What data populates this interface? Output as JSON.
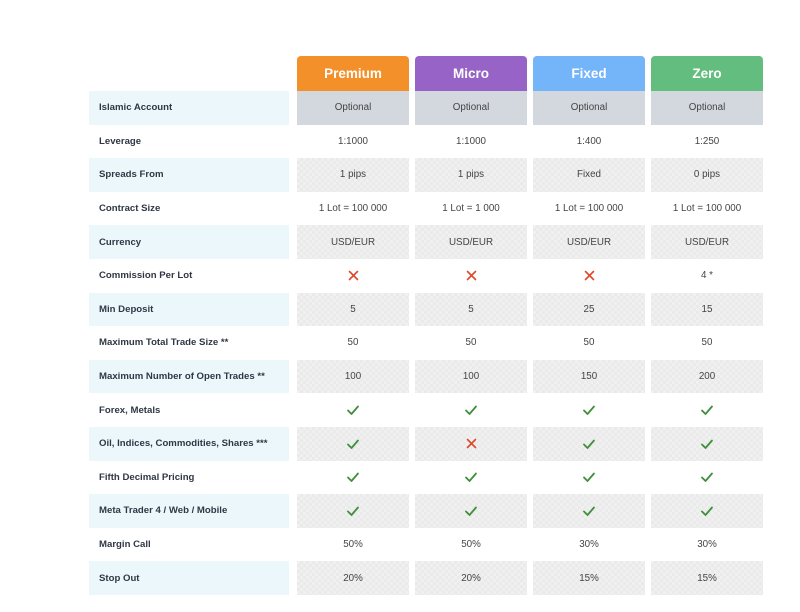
{
  "plans": [
    {
      "name": "Premium",
      "color": "#f4902a"
    },
    {
      "name": "Micro",
      "color": "#9863c6"
    },
    {
      "name": "Fixed",
      "color": "#74b4f8"
    },
    {
      "name": "Zero",
      "color": "#62bd7e"
    }
  ],
  "rows": [
    {
      "label": "Islamic Account",
      "values": [
        "Optional",
        "Optional",
        "Optional",
        "Optional"
      ]
    },
    {
      "label": "Leverage",
      "values": [
        "1:1000",
        "1:1000",
        "1:400",
        "1:250"
      ]
    },
    {
      "label": "Spreads From",
      "values": [
        "1 pips",
        "1 pips",
        "Fixed",
        "0 pips"
      ]
    },
    {
      "label": "Contract Size",
      "values": [
        "1 Lot = 100 000",
        "1 Lot = 1 000",
        "1 Lot = 100 000",
        "1 Lot = 100 000"
      ]
    },
    {
      "label": "Currency",
      "values": [
        "USD/EUR",
        "USD/EUR",
        "USD/EUR",
        "USD/EUR"
      ]
    },
    {
      "label": "Commission Per Lot",
      "values": [
        "x-icon",
        "x-icon",
        "x-icon",
        "4 *"
      ]
    },
    {
      "label": "Min Deposit",
      "values": [
        "5",
        "5",
        "25",
        "15"
      ]
    },
    {
      "label": "Maximum Total Trade Size **",
      "values": [
        "50",
        "50",
        "50",
        "50"
      ]
    },
    {
      "label": "Maximum Number of Open Trades **",
      "values": [
        "100",
        "100",
        "150",
        "200"
      ]
    },
    {
      "label": "Forex, Metals",
      "values": [
        "check-icon",
        "check-icon",
        "check-icon",
        "check-icon"
      ]
    },
    {
      "label": "Oil, Indices, Commodities, Shares ***",
      "values": [
        "check-icon",
        "x-icon",
        "check-icon",
        "check-icon"
      ]
    },
    {
      "label": "Fifth Decimal Pricing",
      "values": [
        "check-icon",
        "check-icon",
        "check-icon",
        "check-icon"
      ]
    },
    {
      "label": "Meta Trader 4 / Web / Mobile",
      "values": [
        "check-icon",
        "check-icon",
        "check-icon",
        "check-icon"
      ]
    },
    {
      "label": "Margin Call",
      "values": [
        "50%",
        "50%",
        "30%",
        "30%"
      ]
    },
    {
      "label": "Stop Out",
      "values": [
        "20%",
        "20%",
        "15%",
        "15%"
      ]
    }
  ],
  "icon_colors": {
    "check": "#3f8f3a",
    "x": "#e0482c"
  }
}
